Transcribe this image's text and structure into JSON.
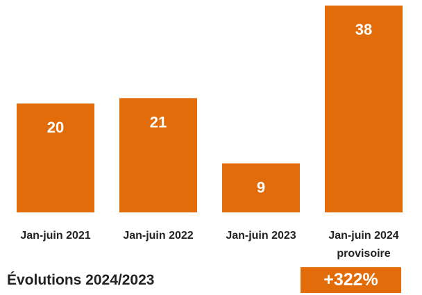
{
  "chart_data": {
    "type": "bar",
    "categories": [
      "Jan-juin 2021",
      "Jan-juin 2022",
      "Jan-juin 2023",
      "Jan-juin 2024"
    ],
    "category_sublabels": [
      "",
      "",
      "",
      "provisoire"
    ],
    "values": [
      20,
      21,
      9,
      38
    ],
    "data_labels": [
      "20",
      "21",
      "9",
      "38"
    ],
    "title": "",
    "xlabel": "",
    "ylabel": "",
    "ylim": [
      0,
      40
    ],
    "grid": false,
    "legend": "none",
    "bar_color": "#e36c0a",
    "label_color": "#ffffff"
  },
  "evolution": {
    "label": "Évolutions 2024/2023",
    "value": "+322%",
    "color": "#e36c0a"
  }
}
